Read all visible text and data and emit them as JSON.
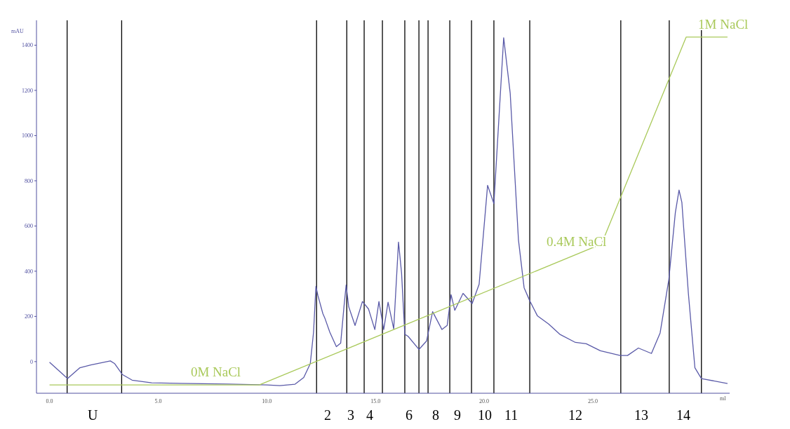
{
  "chart_data": {
    "type": "line",
    "xlabel": "ml",
    "ylabel": "mAU",
    "xlim": [
      -0.6,
      31.3
    ],
    "xticks": [
      {
        "value": 0,
        "label": "0.0"
      },
      {
        "value": 5,
        "label": "5.0"
      },
      {
        "value": 10,
        "label": "10.0"
      },
      {
        "value": 15,
        "label": "15.0"
      },
      {
        "value": 20,
        "label": "20.0"
      },
      {
        "value": 25,
        "label": "25.0"
      }
    ],
    "ylim": [
      -140,
      1510
    ],
    "yticks": [
      0,
      200,
      400,
      600,
      800,
      1000,
      1200,
      1400
    ],
    "grid": false,
    "legend": false,
    "marker": "none",
    "line_style": "solid",
    "series": [
      {
        "color": "#5a5aa8",
        "x": [
          0,
          0.83,
          1.4,
          1.9,
          2.8,
          3.0,
          3.35,
          3.8,
          4.7,
          6.5,
          8.2,
          10.0,
          10.6,
          11.3,
          11.7,
          12.0,
          12.15,
          12.26,
          12.35,
          12.58,
          12.68,
          12.9,
          13.2,
          13.4,
          13.55,
          13.65,
          13.77,
          14.06,
          14.4,
          14.68,
          14.97,
          15.16,
          15.38,
          15.58,
          15.84,
          16.06,
          16.2,
          16.35,
          16.5,
          17.0,
          17.35,
          17.63,
          18.06,
          18.3,
          18.48,
          18.65,
          19.03,
          19.45,
          19.77,
          20.16,
          20.45,
          20.9,
          21.2,
          21.58,
          21.84,
          22.1,
          22.45,
          22.97,
          23.48,
          24.2,
          24.7,
          25.35,
          26.26,
          26.6,
          27.1,
          27.7,
          28.1,
          28.5,
          28.8,
          28.97,
          29.1,
          29.4,
          29.7,
          30.0,
          31.2
        ],
        "values": [
          -3,
          -75,
          -27,
          -15,
          3,
          -9,
          -57,
          -82,
          -94,
          -97,
          -99,
          -103,
          -106,
          -100,
          -70,
          -9,
          130,
          333,
          293,
          212,
          190,
          130,
          66,
          82,
          242,
          339,
          242,
          160,
          266,
          233,
          142,
          266,
          142,
          263,
          145,
          529,
          393,
          121,
          112,
          54,
          91,
          221,
          142,
          160,
          296,
          227,
          302,
          257,
          342,
          780,
          699,
          1433,
          1188,
          539,
          327,
          269,
          203,
          166,
          121,
          85,
          79,
          48,
          27,
          27,
          60,
          36,
          127,
          363,
          659,
          759,
          705,
          302,
          -27,
          -75,
          -97
        ]
      },
      {
        "color": "#a9c95a",
        "x": [
          0,
          9.65,
          25.4,
          29.3,
          31.2
        ],
        "values": [
          -103,
          -103,
          520,
          1436,
          1436
        ]
      }
    ],
    "ref_lines": [
      {
        "axis": "x",
        "value": 0.81
      },
      {
        "axis": "x",
        "value": 3.32
      },
      {
        "axis": "x",
        "value": 12.29
      },
      {
        "axis": "x",
        "value": 13.68
      },
      {
        "axis": "x",
        "value": 14.48
      },
      {
        "axis": "x",
        "value": 15.32
      },
      {
        "axis": "x",
        "value": 16.35
      },
      {
        "axis": "x",
        "value": 17.0
      },
      {
        "axis": "x",
        "value": 17.42
      },
      {
        "axis": "x",
        "value": 18.42
      },
      {
        "axis": "x",
        "value": 19.42
      },
      {
        "axis": "x",
        "value": 20.45
      },
      {
        "axis": "x",
        "value": 22.1
      },
      {
        "axis": "x",
        "value": 26.29
      },
      {
        "axis": "x",
        "value": 28.52
      },
      {
        "axis": "x",
        "value": 30.0
      }
    ],
    "annotations": [
      "U",
      "2",
      "3",
      "4",
      "6",
      "8",
      "9",
      "10",
      "11",
      "12",
      "13",
      "14",
      {
        "text": "0M NaCl",
        "x": 7.65,
        "y": -103
      },
      {
        "text": "0.4M NaCl",
        "x": 24.25,
        "y": 475
      },
      {
        "text": "1M NaCl",
        "x": 31.0,
        "y": 1436
      }
    ]
  }
}
